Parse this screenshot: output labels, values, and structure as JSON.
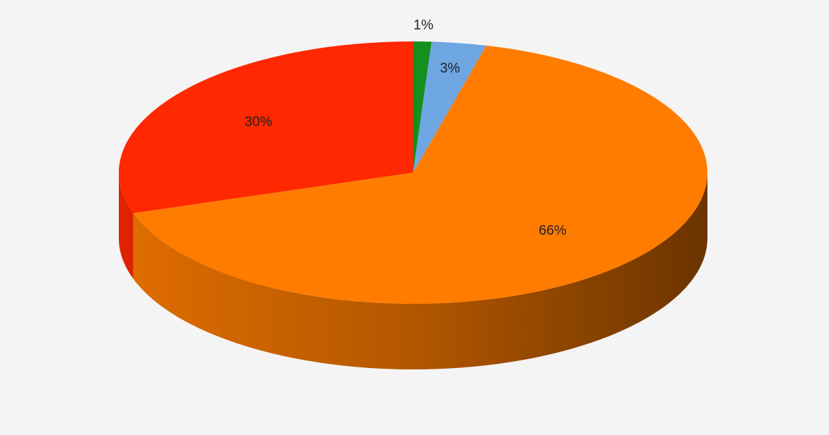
{
  "chart_data": {
    "type": "pie",
    "values": [
      1,
      3,
      66,
      30
    ],
    "value_labels": [
      "1%",
      "3%",
      "66%",
      "30%"
    ],
    "colors": [
      "#14901e",
      "#6ea6e2",
      "#ff7c00",
      "#ff2800"
    ]
  }
}
